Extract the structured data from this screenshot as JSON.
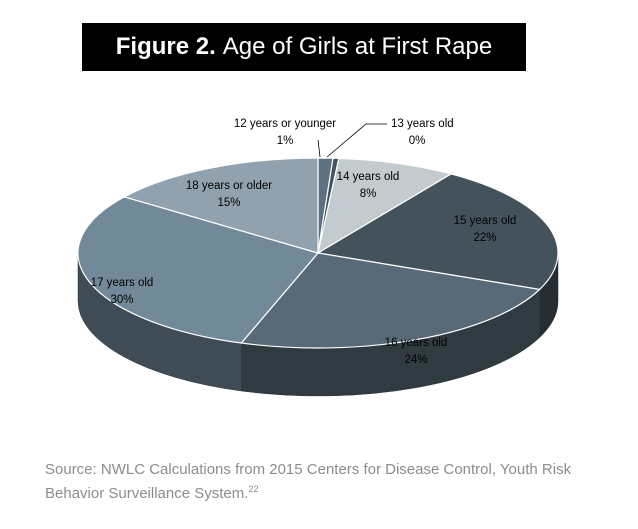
{
  "figure": {
    "label": "Figure 2.",
    "title": "Age of Girls at First Rape"
  },
  "chart_data": {
    "type": "pie",
    "title": "Age of Girls at First Rape",
    "style": "3d",
    "legend": "none",
    "slices": [
      {
        "label": "12 years or younger",
        "value": 1,
        "display": "1%",
        "color": "#5d7180"
      },
      {
        "label": "13 years old",
        "value": 0,
        "display": "0%",
        "color": "#44525c"
      },
      {
        "label": "14 years old",
        "value": 8,
        "display": "8%",
        "color": "#c3cbce"
      },
      {
        "label": "15 years old",
        "value": 22,
        "display": "22%",
        "color": "#44525b"
      },
      {
        "label": "16 years old",
        "value": 24,
        "display": "24%",
        "color": "#586a77"
      },
      {
        "label": "17 years old",
        "value": 30,
        "display": "30%",
        "color": "#72899a"
      },
      {
        "label": "18 years or older",
        "value": 15,
        "display": "15%",
        "color": "#91a2ae"
      }
    ]
  },
  "source": {
    "text": "Source: NWLC Calculations from 2015 Centers for Disease Control, Youth Risk Behavior Surveillance System.",
    "footnote": "22"
  }
}
